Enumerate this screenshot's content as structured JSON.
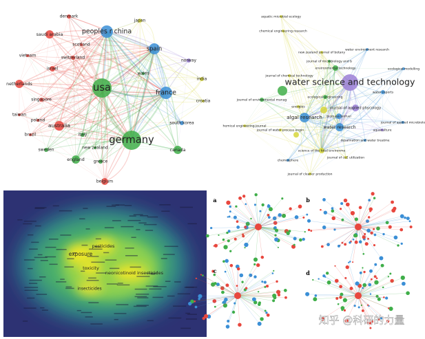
{
  "country_network": {
    "nodes": [
      {
        "label": "denmark"
      },
      {
        "label": "japan"
      },
      {
        "label": "saudi arabia"
      },
      {
        "label": "peoples r china"
      },
      {
        "label": "scotland"
      },
      {
        "label": "spain"
      },
      {
        "label": "vietnam"
      },
      {
        "label": "switzerland"
      },
      {
        "label": "norway"
      },
      {
        "label": "israel"
      },
      {
        "label": "wales"
      },
      {
        "label": "india"
      },
      {
        "label": "netherlands"
      },
      {
        "label": "usa"
      },
      {
        "label": "france"
      },
      {
        "label": "singapore"
      },
      {
        "label": "croatia"
      },
      {
        "label": "taiwan"
      },
      {
        "label": "australia"
      },
      {
        "label": "south korea"
      },
      {
        "label": "poland"
      },
      {
        "label": "brazil"
      },
      {
        "label": "italy"
      },
      {
        "label": "germany"
      },
      {
        "label": "new zealand"
      },
      {
        "label": "sweden"
      },
      {
        "label": "canada"
      },
      {
        "label": "england"
      },
      {
        "label": "greece"
      },
      {
        "label": "belgium"
      }
    ]
  },
  "journal_network": {
    "nodes": [
      {
        "label": "aquatic microbial ecology"
      },
      {
        "label": "chemical engineering research"
      },
      {
        "label": "new zealand journal of botany"
      },
      {
        "label": "water environment research"
      },
      {
        "label": "journal of microbiology and b"
      },
      {
        "label": "environmental technology"
      },
      {
        "label": "ecological modelling"
      },
      {
        "label": "journal of chemical technology"
      },
      {
        "label": "water science and technology"
      },
      {
        "label": "water reports"
      },
      {
        "label": "ecological engineering"
      },
      {
        "label": "journal of environmental manag"
      },
      {
        "label": "energies"
      },
      {
        "label": "journal of applied phycology"
      },
      {
        "label": "algal research"
      },
      {
        "label": "biomass biofuel"
      },
      {
        "label": "hemical engineering journal"
      },
      {
        "label": "journal of water process engin"
      },
      {
        "label": "water research"
      },
      {
        "label": "aquaculture"
      },
      {
        "label": "journal of applied microbiolo"
      },
      {
        "label": "desalination and water treatme"
      },
      {
        "label": "science of the total environme"
      },
      {
        "label": "journal of co2 utilization"
      },
      {
        "label": "chemosphere"
      },
      {
        "label": "journal of cleaner production"
      }
    ]
  },
  "density_map": {
    "labels": [
      "exposure",
      "pesticides",
      "toxicity",
      "neonicotinoid insecticides",
      "insecticides"
    ]
  },
  "sub_panels": {
    "labels": [
      "a",
      "b",
      "c",
      "d"
    ]
  },
  "watermark": "知乎 @科研的力量"
}
